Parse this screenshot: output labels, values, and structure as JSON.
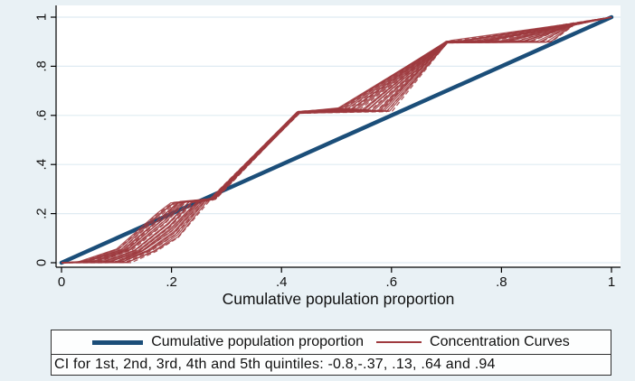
{
  "colors": {
    "background": "#e9f1f5",
    "plot_background": "#ffffff",
    "gridline": "#dfebf2",
    "axis": "#000000",
    "navy": "#1b4e79",
    "maroon": "#9e3a3e",
    "box_border": "#2f2f2f",
    "text": "#101010"
  },
  "chart_data": {
    "type": "line",
    "title": "",
    "xlabel": "Cumulative population proportion",
    "ylabel": "",
    "xlim": [
      0,
      1
    ],
    "ylim": [
      0,
      1
    ],
    "grid": "horizontal",
    "x_tick_labels": [
      "0",
      ".2",
      ".4",
      ".6",
      ".8",
      "1"
    ],
    "x_tick_values": [
      0,
      0.2,
      0.4,
      0.6,
      0.8,
      1
    ],
    "y_tick_labels": [
      "0",
      ".2",
      ".4",
      ".6",
      ".8",
      "1"
    ],
    "y_tick_values": [
      0,
      0.2,
      0.4,
      0.6,
      0.8,
      1
    ],
    "series": [
      {
        "name": "Cumulative population proportion",
        "kind": "line",
        "color": "#1b4e79",
        "stroke_width": 4.5,
        "points": [
          [
            0,
            0
          ],
          [
            1,
            1
          ]
        ]
      },
      {
        "name": "Concentration Curves",
        "kind": "line-bundle",
        "color": "#9e3a3e",
        "stroke_width": 1.3,
        "curve_count": 32,
        "upper_envelope": [
          [
            0,
            0
          ],
          [
            0.03,
            0.003
          ],
          [
            0.1,
            0.055
          ],
          [
            0.175,
            0.205
          ],
          [
            0.2,
            0.244
          ],
          [
            0.27,
            0.258
          ],
          [
            0.43,
            0.614
          ],
          [
            0.5,
            0.63
          ],
          [
            0.7,
            0.9
          ],
          [
            0.71,
            0.904
          ],
          [
            0.93,
            0.973
          ],
          [
            1,
            1
          ]
        ],
        "lower_envelope": [
          [
            0,
            0
          ],
          [
            0.125,
            0.003
          ],
          [
            0.17,
            0.048
          ],
          [
            0.212,
            0.105
          ],
          [
            0.268,
            0.252
          ],
          [
            0.28,
            0.262
          ],
          [
            0.432,
            0.61
          ],
          [
            0.6,
            0.616
          ],
          [
            0.7,
            0.896
          ],
          [
            0.893,
            0.9
          ],
          [
            0.93,
            0.969
          ],
          [
            1,
            1
          ]
        ]
      }
    ],
    "legend": [
      {
        "label": "Cumulative population proportion",
        "color": "#1b4e79",
        "line_width": 5
      },
      {
        "label": "Concentration Curves",
        "color": "#9e3a3e",
        "line_width": 2
      }
    ],
    "note": "CI for 1st, 2nd, 3rd, 4th and 5th quintiles: -0.8,-.37, .13, .64 and .94"
  }
}
